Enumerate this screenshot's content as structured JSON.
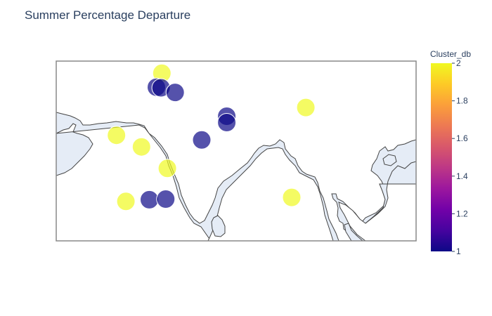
{
  "title": "Summer Percentage Departure",
  "colorbar": {
    "title": "Cluster_db",
    "min": 1,
    "max": 2,
    "ticks": [
      "1",
      "1.2",
      "1.4",
      "1.6",
      "1.8",
      "2"
    ],
    "colorscale": [
      "#0d0887",
      "#46039f",
      "#7201a8",
      "#9c179e",
      "#bd3786",
      "#d8576b",
      "#ed7953",
      "#fb9f3a",
      "#fdca26",
      "#f0f921"
    ]
  },
  "map": {
    "land_color": "#e5ecf6",
    "ocean_color": "#ffffff",
    "coast_color": "#444444",
    "frame_color": "#888888"
  },
  "chart_data": {
    "type": "scatter",
    "lon_range": [
      62,
      108
    ],
    "lat_range": [
      5,
      36
    ],
    "marker_opacity": 0.7,
    "points": [
      {
        "lon": 75.5,
        "lat": 33.9,
        "cluster": 2
      },
      {
        "lon": 74.8,
        "lat": 31.5,
        "cluster": 1
      },
      {
        "lon": 75.4,
        "lat": 31.4,
        "cluster": 1
      },
      {
        "lon": 77.2,
        "lat": 30.6,
        "cluster": 1
      },
      {
        "lon": 93.9,
        "lat": 28.0,
        "cluster": 2
      },
      {
        "lon": 83.8,
        "lat": 26.5,
        "cluster": 1
      },
      {
        "lon": 83.8,
        "lat": 25.4,
        "cluster": 1
      },
      {
        "lon": 69.7,
        "lat": 23.2,
        "cluster": 2
      },
      {
        "lon": 80.6,
        "lat": 22.4,
        "cluster": 1
      },
      {
        "lon": 72.9,
        "lat": 21.2,
        "cluster": 2
      },
      {
        "lon": 76.2,
        "lat": 17.5,
        "cluster": 2
      },
      {
        "lon": 92.1,
        "lat": 12.5,
        "cluster": 2
      },
      {
        "lon": 73.9,
        "lat": 12.1,
        "cluster": 1
      },
      {
        "lon": 76.0,
        "lat": 12.2,
        "cluster": 1
      },
      {
        "lon": 70.9,
        "lat": 11.8,
        "cluster": 2
      }
    ]
  }
}
